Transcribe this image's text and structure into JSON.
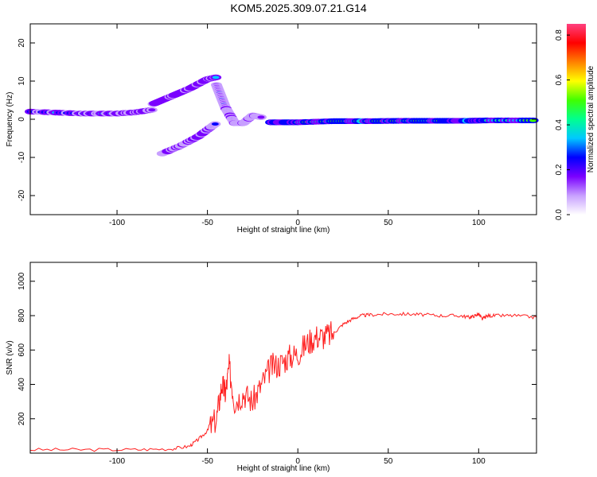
{
  "figure": {
    "title": "KOM5.2025.309.07.21.G14"
  },
  "chart_data": [
    {
      "type": "heatmap",
      "title": "KOM5.2025.309.07.21.G14",
      "xlabel": "Height of straight line (km)",
      "ylabel": "Frequency (Hz)",
      "xlim": [
        -148,
        132
      ],
      "ylim": [
        -25,
        25
      ],
      "x_ticks": [
        -100,
        -50,
        0,
        50,
        100
      ],
      "y_ticks": [
        -20,
        -10,
        0,
        10,
        20
      ],
      "colorbar": {
        "label": "Normalized spectral amplitude",
        "range": [
          0,
          0.85
        ],
        "ticks": [
          0.0,
          0.2,
          0.4,
          0.6,
          0.8
        ],
        "colors": [
          "#ffffff",
          "#c8a0ff",
          "#7a00ff",
          "#0000ff",
          "#00c8ff",
          "#00ff90",
          "#40ff00",
          "#ffff00",
          "#ff8000",
          "#ff0000",
          "#ff4080"
        ]
      },
      "ridges": [
        {
          "name": "",
          "x": [
            -148,
            -120,
            -100,
            -90,
            -80
          ],
          "y": [
            2,
            1.5,
            1.5,
            1.8,
            2.5
          ],
          "amplitude": 0.3
        },
        {
          "name": "",
          "x": [
            -80,
            -70,
            -60,
            -50,
            -45
          ],
          "y": [
            4,
            6,
            8,
            10.5,
            11
          ],
          "amplitude": 0.32
        },
        {
          "name": "",
          "x": [
            -75,
            -65,
            -55,
            -45
          ],
          "y": [
            -9,
            -7,
            -4.5,
            -1
          ],
          "amplitude": 0.3
        },
        {
          "name": "",
          "x": [
            -45,
            -40,
            -35,
            -30,
            -25,
            -20
          ],
          "y": [
            9,
            3,
            -1,
            -1,
            1,
            0.5
          ],
          "amplitude": 0.22
        },
        {
          "name": "",
          "x": [
            -15,
            0,
            20,
            40,
            60,
            80,
            95,
            105,
            132
          ],
          "y": [
            -0.8,
            -0.8,
            -0.5,
            -0.5,
            -0.4,
            -0.4,
            -0.4,
            -0.3,
            -0.3
          ],
          "amplitude": 0.5
        }
      ]
    },
    {
      "type": "line",
      "xlabel": "Height of straight line (km)",
      "ylabel": "SNR (v/v)",
      "xlim": [
        -148,
        132
      ],
      "ylim": [
        0,
        1110
      ],
      "x_ticks": [
        -100,
        -50,
        0,
        50,
        100
      ],
      "y_ticks": [
        200,
        400,
        600,
        800,
        1000
      ],
      "color": "#ff2020",
      "series": [
        {
          "name": "",
          "x": [
            -148,
            -120,
            -90,
            -70,
            -60,
            -55,
            -50,
            -45,
            -42,
            -40,
            -38,
            -35,
            -30,
            -25,
            -20,
            -15,
            -10,
            -5,
            0,
            5,
            10,
            15,
            20,
            25,
            30,
            35,
            40,
            50,
            60,
            70,
            80,
            90,
            95,
            98,
            100,
            102,
            105,
            110,
            120,
            132
          ],
          "y": [
            20,
            20,
            20,
            25,
            40,
            80,
            130,
            200,
            400,
            350,
            500,
            300,
            350,
            300,
            400,
            500,
            520,
            560,
            580,
            640,
            680,
            680,
            700,
            750,
            780,
            800,
            805,
            810,
            810,
            805,
            800,
            800,
            790,
            800,
            810,
            780,
            800,
            800,
            800,
            790
          ]
        }
      ]
    }
  ]
}
